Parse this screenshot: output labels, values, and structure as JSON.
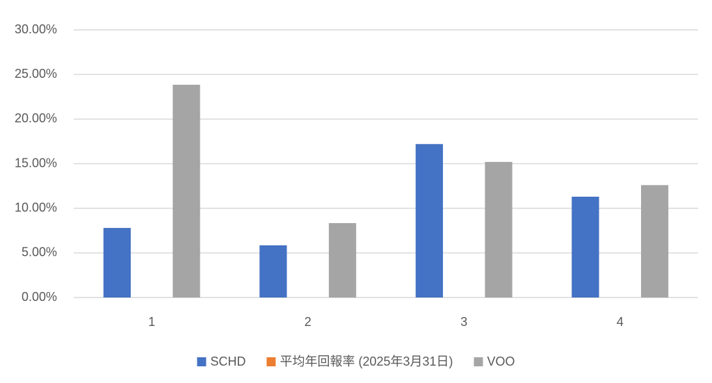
{
  "chart_data": {
    "type": "bar",
    "categories": [
      "1",
      "2",
      "3",
      "4"
    ],
    "series": [
      {
        "name": "SCHD",
        "color": "#4472c4",
        "values": [
          7.8,
          5.85,
          17.2,
          11.3
        ]
      },
      {
        "name": "平均年回報率 (2025年3月31日)",
        "color": "#ed7d31",
        "values": [
          null,
          null,
          null,
          null
        ]
      },
      {
        "name": "VOO",
        "color": "#a5a5a5",
        "values": [
          23.85,
          8.34,
          15.2,
          12.6
        ]
      }
    ],
    "ylim": [
      0,
      30
    ],
    "yticks": [
      {
        "value": 0,
        "label": "0.00%"
      },
      {
        "value": 5,
        "label": "5.00%"
      },
      {
        "value": 10,
        "label": "10.00%"
      },
      {
        "value": 15,
        "label": "15.00%"
      },
      {
        "value": 20,
        "label": "20.00%"
      },
      {
        "value": 25,
        "label": "25.00%"
      },
      {
        "value": 30,
        "label": "30.00%"
      }
    ],
    "grid": true,
    "legend": "bottom"
  }
}
